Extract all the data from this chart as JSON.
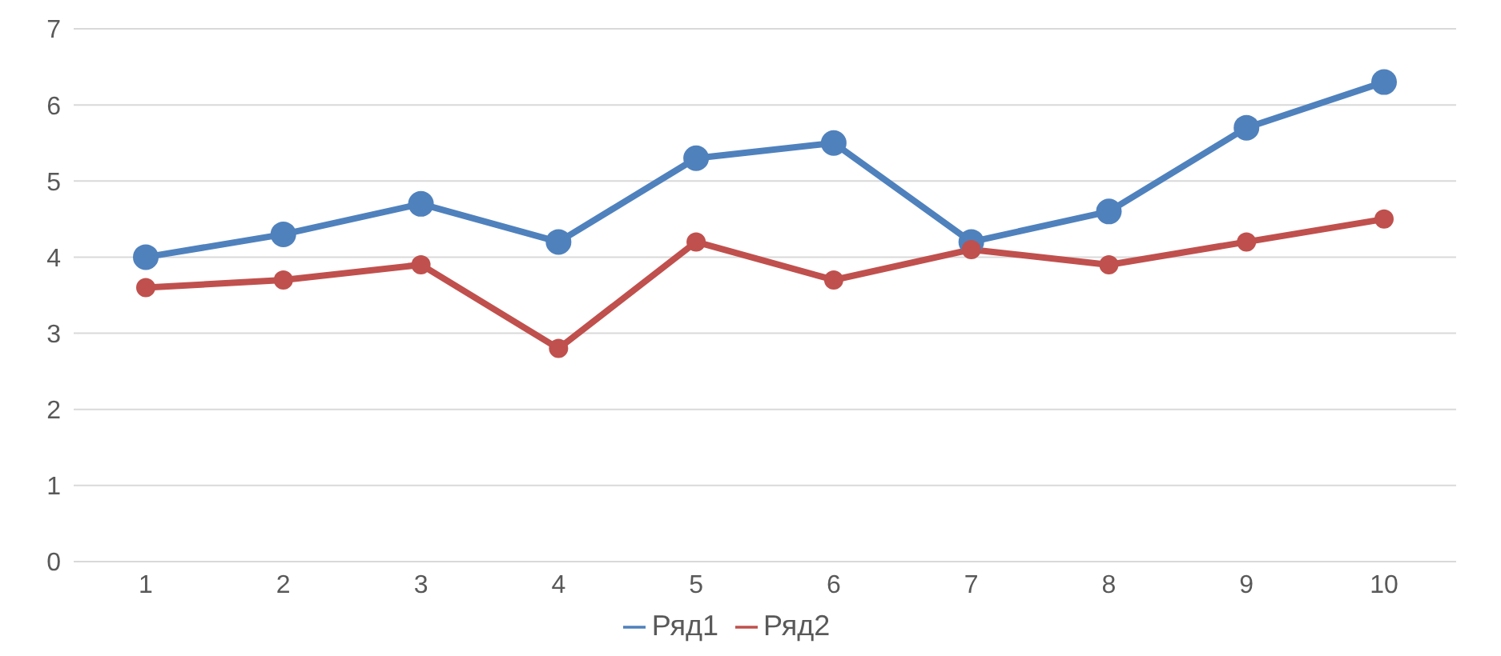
{
  "chart_data": {
    "type": "line",
    "categories": [
      "1",
      "2",
      "3",
      "4",
      "5",
      "6",
      "7",
      "8",
      "9",
      "10"
    ],
    "series": [
      {
        "name": "Ряд1",
        "color": "#4f81bd",
        "values": [
          4.0,
          4.3,
          4.7,
          4.2,
          5.3,
          5.5,
          4.2,
          4.6,
          5.7,
          6.3
        ]
      },
      {
        "name": "Ряд2",
        "color": "#c0504d",
        "values": [
          3.6,
          3.7,
          3.9,
          2.8,
          4.2,
          3.7,
          4.1,
          3.9,
          4.2,
          4.5
        ]
      }
    ],
    "ylim": [
      0,
      7
    ],
    "yticks": [
      0,
      1,
      2,
      3,
      4,
      5,
      6,
      7
    ],
    "grid": "y",
    "legend": "bottom",
    "marker": "circle",
    "line_style": "solid"
  }
}
